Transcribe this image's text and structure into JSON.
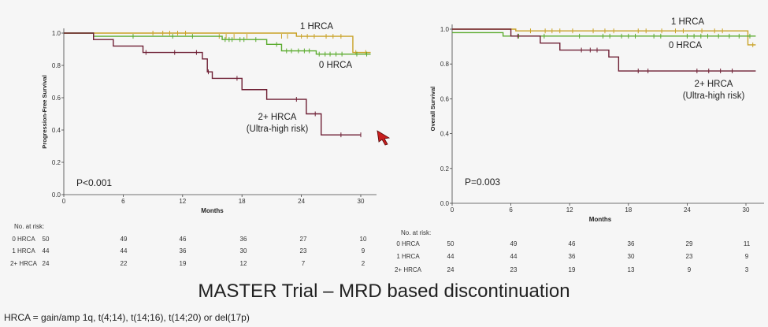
{
  "slide": {
    "title": "MASTER Trial – MRD based discontinuation",
    "footnote": "HRCA = gain/amp 1q, t(4;14), t(14;16), t(14;20) or del(17p)"
  },
  "colors": {
    "hrca0": "#5aab2e",
    "hrca1": "#c9a227",
    "hrca2": "#6e1f34",
    "axis": "#444444",
    "pointer": "#c81e1e"
  },
  "chart_data": [
    {
      "type": "line",
      "subtype": "kaplan-meier",
      "ylabel": "Progression-Free Survival",
      "xlabel": "Months",
      "xlim": [
        0,
        31
      ],
      "ylim": [
        0,
        1.05
      ],
      "xticks": [
        "0",
        "6",
        "12",
        "18",
        "24",
        "30"
      ],
      "yticks": [
        "0.0",
        "0.2",
        "0.4",
        "0.6",
        "0.8",
        "1.0"
      ],
      "pvalue": "P<0.001",
      "series": [
        {
          "name": "1 HRCA",
          "label_lines": [
            "1 HRCA"
          ],
          "color": "hrca1",
          "steps": [
            [
              0,
              1.0
            ],
            [
              23,
              1.0
            ],
            [
              23.5,
              0.98
            ],
            [
              28.5,
              0.98
            ],
            [
              29.2,
              0.88
            ],
            [
              31,
              0.88
            ]
          ],
          "censors": [
            [
              9,
              1.0
            ],
            [
              10,
              1.0
            ],
            [
              10.7,
              1.0
            ],
            [
              11.5,
              1.0
            ],
            [
              12.3,
              1.0
            ],
            [
              15.7,
              0.98
            ],
            [
              16.4,
              0.98
            ],
            [
              17.2,
              0.98
            ],
            [
              18.5,
              0.98
            ],
            [
              22,
              0.98
            ],
            [
              22.6,
              0.98
            ],
            [
              24,
              0.98
            ],
            [
              24.6,
              0.98
            ],
            [
              25.3,
              0.98
            ],
            [
              26.5,
              0.98
            ],
            [
              27.2,
              0.98
            ],
            [
              28,
              0.98
            ],
            [
              29.5,
              0.88
            ],
            [
              30.5,
              0.88
            ]
          ]
        },
        {
          "name": "0 HRCA",
          "label_lines": [
            "0 HRCA"
          ],
          "color": "hrca0",
          "steps": [
            [
              0,
              1.0
            ],
            [
              3,
              0.98
            ],
            [
              16,
              0.96
            ],
            [
              20.5,
              0.93
            ],
            [
              22,
              0.89
            ],
            [
              25.5,
              0.87
            ],
            [
              31,
              0.87
            ]
          ],
          "censors": [
            [
              7,
              0.98
            ],
            [
              11,
              0.98
            ],
            [
              13,
              0.98
            ],
            [
              16.3,
              0.96
            ],
            [
              16.7,
              0.96
            ],
            [
              17,
              0.96
            ],
            [
              17.8,
              0.96
            ],
            [
              18.2,
              0.96
            ],
            [
              19.4,
              0.96
            ],
            [
              21.5,
              0.93
            ],
            [
              22.5,
              0.89
            ],
            [
              23,
              0.89
            ],
            [
              23.7,
              0.89
            ],
            [
              24.3,
              0.89
            ],
            [
              24.8,
              0.89
            ],
            [
              25.8,
              0.87
            ],
            [
              26.4,
              0.87
            ],
            [
              26.9,
              0.87
            ],
            [
              27.5,
              0.87
            ],
            [
              28.1,
              0.87
            ],
            [
              29.6,
              0.87
            ],
            [
              30.6,
              0.87
            ]
          ]
        },
        {
          "name": "2+ HRCA",
          "label_lines": [
            "2+ HRCA",
            "(Ultra-high risk)"
          ],
          "color": "hrca2",
          "steps": [
            [
              0,
              1.0
            ],
            [
              3,
              0.96
            ],
            [
              5,
              0.92
            ],
            [
              8,
              0.88
            ],
            [
              14,
              0.84
            ],
            [
              14.5,
              0.76
            ],
            [
              15,
              0.72
            ],
            [
              18,
              0.65
            ],
            [
              20.5,
              0.59
            ],
            [
              24.5,
              0.5
            ],
            [
              26,
              0.37
            ],
            [
              30,
              0.37
            ]
          ],
          "censors": [
            [
              8.3,
              0.88
            ],
            [
              11.2,
              0.88
            ],
            [
              13.4,
              0.88
            ],
            [
              14.6,
              0.76
            ],
            [
              17.5,
              0.72
            ],
            [
              23.5,
              0.59
            ],
            [
              25.4,
              0.5
            ],
            [
              28,
              0.37
            ],
            [
              30,
              0.37
            ]
          ]
        }
      ],
      "risk_table": {
        "heading": "No. at risk:",
        "rows": [
          {
            "label": "0 HRCA",
            "values": [
              "50",
              "49",
              "46",
              "36",
              "27",
              "10"
            ]
          },
          {
            "label": "1 HRCA",
            "values": [
              "44",
              "44",
              "36",
              "30",
              "23",
              "9"
            ]
          },
          {
            "label": "2+ HRCA",
            "values": [
              "24",
              "22",
              "19",
              "12",
              "7",
              "2"
            ]
          }
        ]
      }
    },
    {
      "type": "line",
      "subtype": "kaplan-meier",
      "ylabel": "Overall Survival",
      "xlabel": "Months",
      "xlim": [
        0,
        31
      ],
      "ylim": [
        0,
        1.05
      ],
      "xticks": [
        "0",
        "6",
        "12",
        "18",
        "24",
        "30"
      ],
      "yticks": [
        "0.0",
        "0.2",
        "0.4",
        "0.6",
        "0.8",
        "1.0"
      ],
      "pvalue": "P=0.003",
      "series": [
        {
          "name": "1 HRCA",
          "label_lines": [
            "1 HRCA"
          ],
          "color": "hrca1",
          "steps": [
            [
              0,
              1.0
            ],
            [
              6.5,
              0.99
            ],
            [
              29.5,
              0.99
            ],
            [
              30.2,
              0.91
            ],
            [
              31,
              0.91
            ]
          ],
          "censors": [
            [
              8,
              0.99
            ],
            [
              9.5,
              0.99
            ],
            [
              10.2,
              0.99
            ],
            [
              11,
              0.99
            ],
            [
              12.3,
              0.99
            ],
            [
              14.4,
              0.99
            ],
            [
              15.6,
              0.99
            ],
            [
              16.5,
              0.99
            ],
            [
              19,
              0.99
            ],
            [
              19.8,
              0.99
            ],
            [
              21.4,
              0.99
            ],
            [
              22.8,
              0.99
            ],
            [
              23.6,
              0.99
            ],
            [
              25.5,
              0.99
            ],
            [
              26.8,
              0.99
            ],
            [
              27.6,
              0.99
            ],
            [
              30.7,
              0.91
            ]
          ]
        },
        {
          "name": "0 HRCA",
          "label_lines": [
            "0 HRCA"
          ],
          "color": "hrca0",
          "steps": [
            [
              0,
              0.98
            ],
            [
              4.8,
              0.98
            ],
            [
              5.2,
              0.96
            ],
            [
              31,
              0.96
            ]
          ],
          "censors": [
            [
              6.8,
              0.96
            ],
            [
              9.4,
              0.96
            ],
            [
              13,
              0.96
            ],
            [
              15.4,
              0.96
            ],
            [
              16.1,
              0.96
            ],
            [
              17.3,
              0.96
            ],
            [
              18,
              0.96
            ],
            [
              18.7,
              0.96
            ],
            [
              20.6,
              0.96
            ],
            [
              21.3,
              0.96
            ],
            [
              24,
              0.96
            ],
            [
              24.7,
              0.96
            ],
            [
              25.4,
              0.96
            ],
            [
              26.1,
              0.96
            ],
            [
              27.2,
              0.96
            ],
            [
              28.3,
              0.96
            ],
            [
              29.3,
              0.96
            ],
            [
              30.4,
              0.96
            ]
          ]
        },
        {
          "name": "2+ HRCA",
          "label_lines": [
            "2+ HRCA",
            "(Ultra-high risk)"
          ],
          "color": "hrca2",
          "steps": [
            [
              0,
              1.0
            ],
            [
              6,
              0.96
            ],
            [
              9,
              0.92
            ],
            [
              11,
              0.88
            ],
            [
              16,
              0.84
            ],
            [
              17,
              0.76
            ],
            [
              31,
              0.76
            ]
          ],
          "censors": [
            [
              6.7,
              0.96
            ],
            [
              13.2,
              0.88
            ],
            [
              14.1,
              0.88
            ],
            [
              14.8,
              0.88
            ],
            [
              19,
              0.76
            ],
            [
              20,
              0.76
            ],
            [
              25,
              0.76
            ],
            [
              26.2,
              0.76
            ],
            [
              27.4,
              0.76
            ],
            [
              28.6,
              0.76
            ]
          ]
        }
      ],
      "risk_table": {
        "heading": "No. at risk:",
        "rows": [
          {
            "label": "0 HRCA",
            "values": [
              "50",
              "49",
              "46",
              "36",
              "29",
              "11"
            ]
          },
          {
            "label": "1 HRCA",
            "values": [
              "44",
              "44",
              "36",
              "30",
              "23",
              "9"
            ]
          },
          {
            "label": "2+ HRCA",
            "values": [
              "24",
              "23",
              "19",
              "13",
              "9",
              "3"
            ]
          }
        ]
      }
    }
  ]
}
